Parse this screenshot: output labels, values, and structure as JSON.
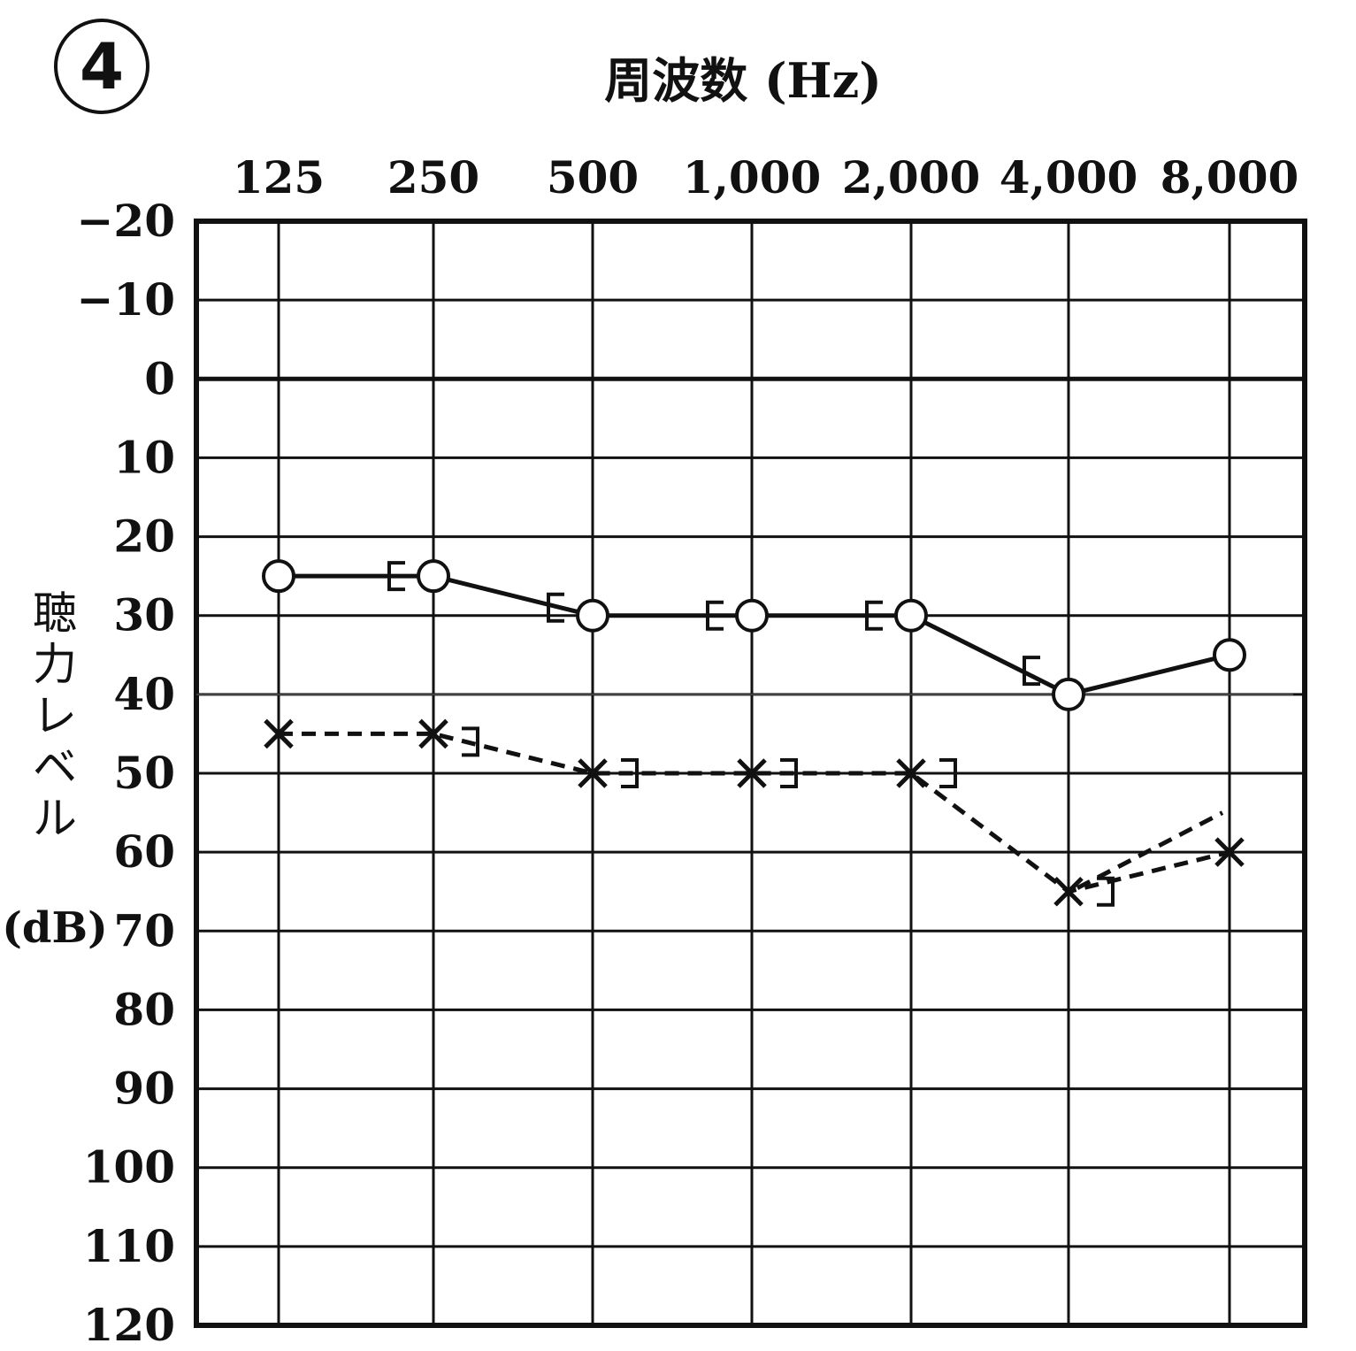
{
  "chart_data": {
    "type": "line",
    "panel_number": "4",
    "title": "周波数 (Hz)",
    "xlabel": "周波数 (Hz)",
    "ylabel": "聴力レベル",
    "ylabel_unit": "(dB)",
    "categories": [
      "125",
      "250",
      "500",
      "1,000",
      "2,000",
      "4,000",
      "8,000"
    ],
    "y_ticks": [
      "−20",
      "−10",
      "0",
      "10",
      "20",
      "30",
      "40",
      "50",
      "60",
      "70",
      "80",
      "90",
      "100",
      "110",
      "120"
    ],
    "ylim": [
      -20,
      120
    ],
    "y_inverted": true,
    "grid": true,
    "reference_line_db": 40,
    "series": [
      {
        "symbol": "circle",
        "line": "solid",
        "values": [
          25,
          25,
          30,
          30,
          30,
          40,
          35
        ]
      },
      {
        "symbol": "cross",
        "line": "dashed",
        "values": [
          45,
          45,
          50,
          50,
          50,
          65,
          60
        ]
      },
      {
        "symbol": "bracket-left",
        "line": "none",
        "values": [
          null,
          25,
          29,
          30,
          30,
          37,
          null
        ]
      },
      {
        "symbol": "bracket-right",
        "line": "none",
        "values": [
          null,
          46,
          50,
          50,
          50,
          65,
          null
        ]
      }
    ],
    "dashed_end_segment_to_db": 55
  }
}
